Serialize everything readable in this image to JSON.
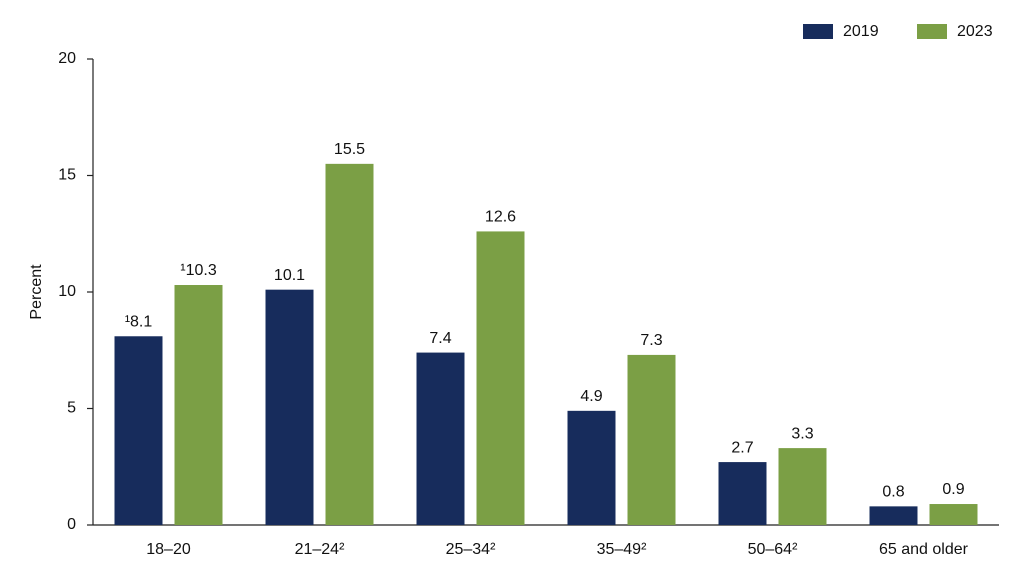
{
  "chart_data": {
    "type": "bar",
    "y_label": "Percent",
    "categories": [
      "18–20",
      "21–24²",
      "25–34²",
      "35–49²",
      "50–64²",
      "65 and older"
    ],
    "series": [
      {
        "name": "2019",
        "color": "#172c5c",
        "values": [
          8.1,
          10.1,
          7.4,
          4.9,
          2.7,
          0.8
        ],
        "value_labels": [
          "¹8.1",
          "10.1",
          "7.4",
          "4.9",
          "2.7",
          "0.8"
        ]
      },
      {
        "name": "2023",
        "color": "#7b9f45",
        "values": [
          10.3,
          15.5,
          12.6,
          7.3,
          3.3,
          0.9
        ],
        "value_labels": [
          "¹10.3",
          "15.5",
          "12.6",
          "7.3",
          "3.3",
          "0.9"
        ]
      }
    ],
    "ylim": [
      0,
      20
    ],
    "yticks": [
      0,
      5,
      10,
      15,
      20
    ],
    "legend": "top-right"
  }
}
